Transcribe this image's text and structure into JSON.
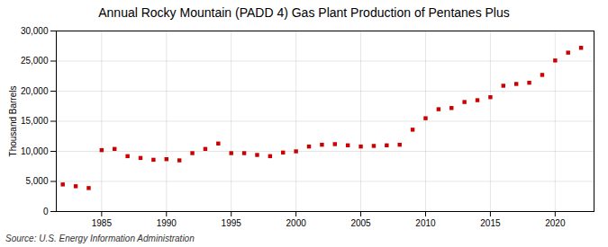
{
  "chart_data": {
    "type": "scatter",
    "title": "Annual Rocky Mountain (PADD 4) Gas Plant Production of Pentanes Plus",
    "ylabel": "Thousand Barrels",
    "annotation": "Source: U.S. Energy Information Administration",
    "x": [
      1982,
      1983,
      1984,
      1985,
      1986,
      1987,
      1988,
      1989,
      1990,
      1991,
      1992,
      1993,
      1994,
      1995,
      1996,
      1997,
      1998,
      1999,
      2000,
      2001,
      2002,
      2003,
      2004,
      2005,
      2006,
      2007,
      2008,
      2009,
      2010,
      2011,
      2012,
      2013,
      2014,
      2015,
      2016,
      2017,
      2018,
      2019,
      2020,
      2021,
      2022
    ],
    "values": [
      4500,
      4200,
      3900,
      10200,
      10400,
      9200,
      8900,
      8600,
      8700,
      8500,
      9700,
      10400,
      11300,
      9700,
      9700,
      9400,
      9200,
      9800,
      10000,
      10800,
      11100,
      11200,
      11000,
      10800,
      10900,
      11000,
      11100,
      13600,
      15500,
      17000,
      17200,
      18200,
      18500,
      19000,
      20900,
      21200,
      21400,
      22700,
      25100,
      26400,
      27200
    ],
    "color": "#cc0000",
    "marker": "square",
    "xlim": [
      1981.5,
      2023
    ],
    "xticks": [
      1985,
      1990,
      1995,
      2000,
      2005,
      2010,
      2015,
      2020
    ],
    "ylim": [
      0,
      30000
    ],
    "yticks": [
      0,
      {
        "value": 5000,
        "label": "5,000"
      },
      {
        "value": 10000,
        "label": "10,000"
      },
      {
        "value": 15000,
        "label": "15,000"
      },
      {
        "value": 20000,
        "label": "20,000"
      },
      {
        "value": 25000,
        "label": "25,000"
      },
      {
        "value": 30000,
        "label": "30,000"
      }
    ],
    "grid": true
  }
}
